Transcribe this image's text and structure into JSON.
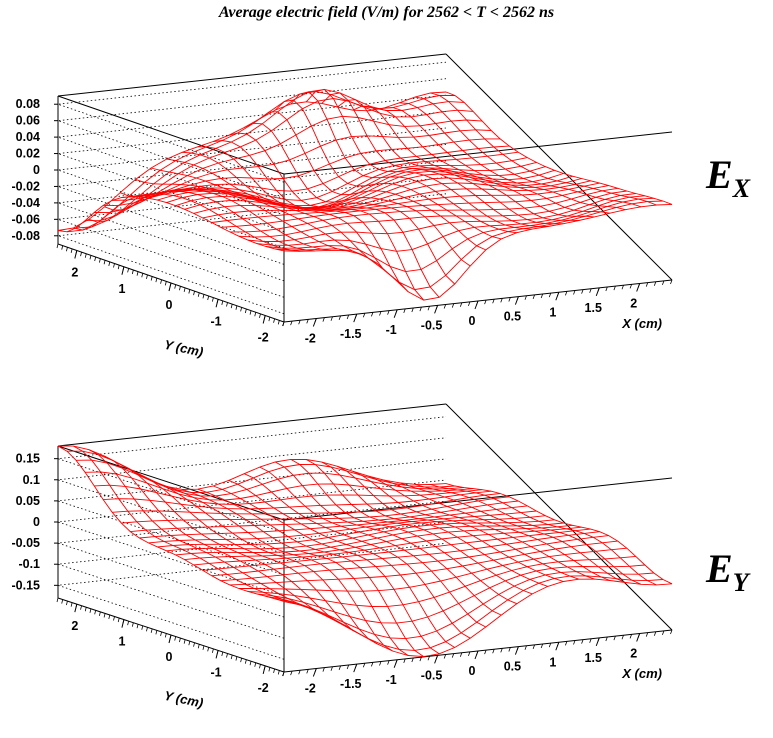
{
  "title": "Average electric field (V/m) for 2562 < T < 2562 ns",
  "colors": {
    "surface": "#ff0000",
    "axes": "#000000",
    "background": "#ffffff"
  },
  "chart_data": [
    {
      "type": "surface",
      "label_main": "E",
      "label_sub": "X",
      "xlabel": "X (cm)",
      "ylabel": "Y (cm)",
      "xlim": [
        -2.4,
        2.4
      ],
      "ylim": [
        -2.4,
        2.4
      ],
      "zlim": [
        -0.09,
        0.09
      ],
      "z_ticks": [
        "0.08",
        "0.06",
        "0.04",
        "0.02",
        "0",
        "-0.02",
        "-0.04",
        "-0.06",
        "-0.08"
      ],
      "x_ticks": [
        "-2",
        "-1.5",
        "-1",
        "-0.5",
        "0",
        "0.5",
        "1",
        "1.5",
        "2"
      ],
      "y_ticks": [
        "2",
        "1",
        "0",
        "-1",
        "-2"
      ],
      "grid": "dotted",
      "surface_model": {
        "grid_n": 25,
        "peaks": [
          {
            "x": -2.4,
            "y": 2.4,
            "amp": -0.07,
            "sx": 0.6,
            "sy": 0.6
          },
          {
            "x": 0.6,
            "y": 2.0,
            "amp": 0.085,
            "sx": 0.55,
            "sy": 0.45
          },
          {
            "x": -0.6,
            "y": -2.4,
            "amp": -0.09,
            "sx": 0.45,
            "sy": 0.5
          },
          {
            "x": 2.4,
            "y": 2.4,
            "amp": 0.04,
            "sx": 0.6,
            "sy": 0.6
          },
          {
            "x": -0.2,
            "y": 0.8,
            "amp": -0.03,
            "sx": 0.5,
            "sy": 0.5
          },
          {
            "x": 1.6,
            "y": -1.6,
            "amp": -0.02,
            "sx": 0.5,
            "sy": 0.5
          }
        ],
        "waves": [
          {
            "ax": 0.012,
            "kx": 2.4,
            "ky": 1.7
          }
        ]
      }
    },
    {
      "type": "surface",
      "label_main": "E",
      "label_sub": "Y",
      "xlabel": "X (cm)",
      "ylabel": "Y (cm)",
      "xlim": [
        -2.4,
        2.4
      ],
      "ylim": [
        -2.4,
        2.4
      ],
      "zlim": [
        -0.18,
        0.18
      ],
      "z_ticks": [
        "0.15",
        "0.1",
        "0.05",
        "0",
        "-0.05",
        "-0.1",
        "-0.15"
      ],
      "x_ticks": [
        "-2",
        "-1.5",
        "-1",
        "-0.5",
        "0",
        "0.5",
        "1",
        "1.5",
        "2"
      ],
      "y_ticks": [
        "2",
        "1",
        "0",
        "-1",
        "-2"
      ],
      "grid": "dotted",
      "surface_model": {
        "grid_n": 25,
        "peaks": [
          {
            "x": -2.4,
            "y": 2.4,
            "amp": 0.17,
            "sx": 0.9,
            "sy": 0.9
          },
          {
            "x": -0.6,
            "y": -2.4,
            "amp": -0.17,
            "sx": 0.9,
            "sy": 0.7
          },
          {
            "x": 2.4,
            "y": -2.4,
            "amp": -0.06,
            "sx": 0.8,
            "sy": 0.8
          },
          {
            "x": 0.4,
            "y": 2.4,
            "amp": 0.08,
            "sx": 0.7,
            "sy": 0.6
          }
        ],
        "waves": [
          {
            "ax": 0.01,
            "kx": 2.0,
            "ky": 2.6
          }
        ]
      }
    }
  ]
}
